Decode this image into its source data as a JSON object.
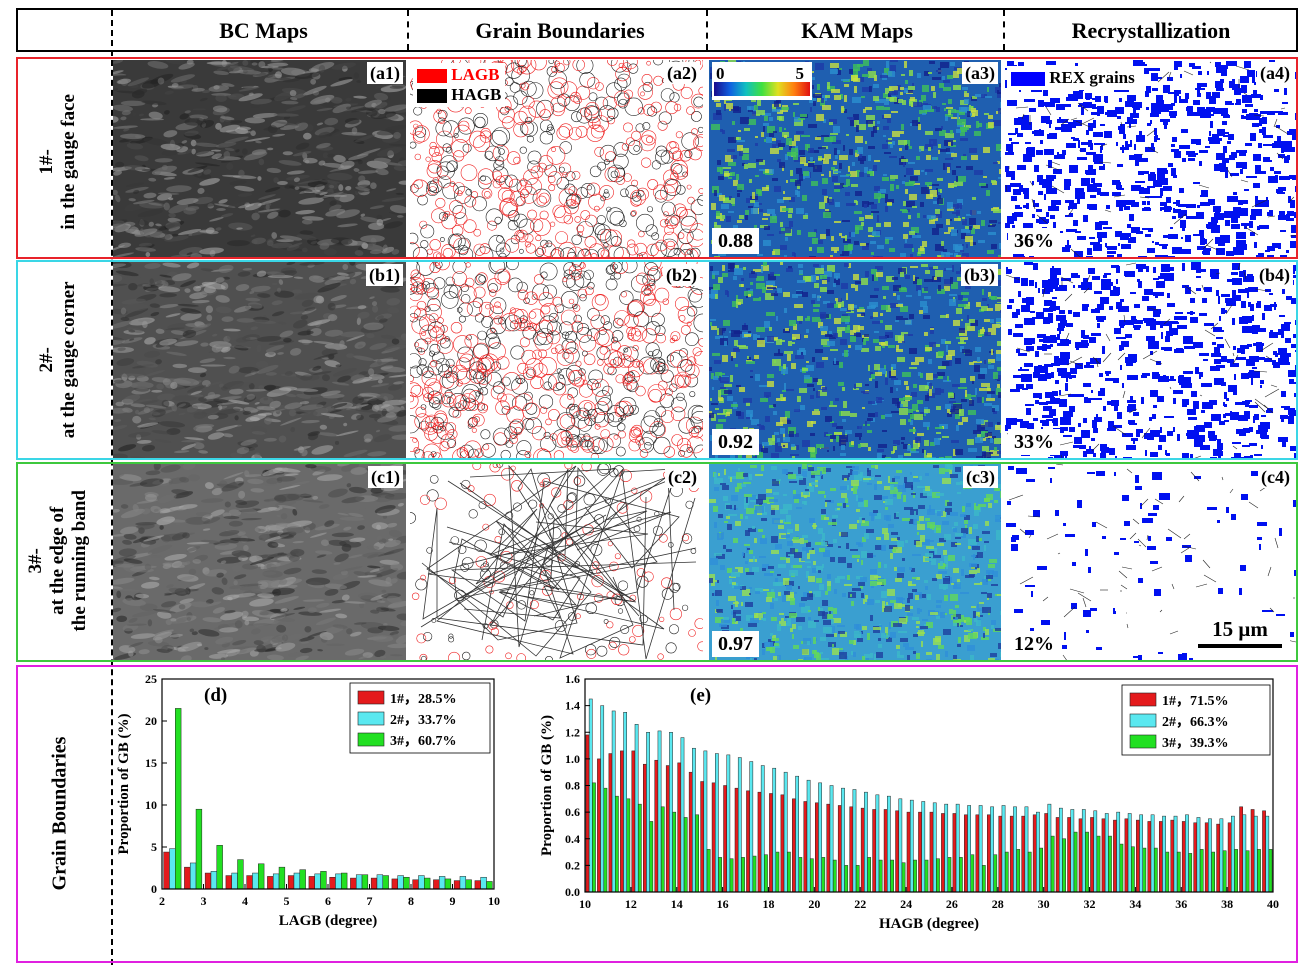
{
  "columns": [
    "BC Maps",
    "Grain Boundaries",
    "KAM Maps",
    "Recrystallization"
  ],
  "rows": [
    {
      "id": "1#-",
      "desc": "in the gauge face",
      "frame_color": "#e8232a",
      "tags": [
        "(a1)",
        "(a2)",
        "(a3)",
        "(a4)"
      ],
      "kam_mean": "0.88",
      "rex_fraction": "36%"
    },
    {
      "id": "2#-",
      "desc": "at the gauge corner",
      "frame_color": "#3ad6e6",
      "tags": [
        "(b1)",
        "(b2)",
        "(b3)",
        "(b4)"
      ],
      "kam_mean": "0.92",
      "rex_fraction": "33%"
    },
    {
      "id": "3#-",
      "desc_line1": "at the edge of",
      "desc_line2": "the running band",
      "frame_color": "#3ec83e",
      "tags": [
        "(c1)",
        "(c2)",
        "(c3)",
        "(c4)"
      ],
      "kam_mean": "0.97",
      "rex_fraction": "12%"
    }
  ],
  "gb_legend": {
    "lagb": "LAGB",
    "hagb": "HAGB",
    "lagb_color": "#ff0000",
    "hagb_color": "#000000"
  },
  "kam_scale": {
    "min": "0",
    "max": "5"
  },
  "rex_legend": {
    "label": "REX grains",
    "color": "#0000ff"
  },
  "scale_bar": "15 μm",
  "bottom_label": "Grain Boundaries",
  "bottom_frame_color": "#e020e0",
  "colors": {
    "s1": "#e41a1c",
    "s2": "#5ae8f0",
    "s3": "#22e022"
  },
  "chart_data": [
    {
      "type": "bar",
      "panel": "(d)",
      "xlabel": "LAGB (degree)",
      "ylabel": "Proportion of GB (%)",
      "xlim": [
        2,
        10
      ],
      "ylim": [
        0,
        25
      ],
      "xticks": [
        "2",
        "3",
        "4",
        "5",
        "6",
        "7",
        "8",
        "9",
        "10"
      ],
      "yticks": [
        "0",
        "5",
        "10",
        "15",
        "20",
        "25"
      ],
      "x": [
        2.25,
        2.75,
        3.25,
        3.75,
        4.25,
        4.75,
        5.25,
        5.75,
        6.25,
        6.75,
        7.25,
        7.75,
        8.25,
        8.75,
        9.25,
        9.75
      ],
      "series": [
        {
          "name": "1#，28.5%",
          "values": [
            4.4,
            2.6,
            1.9,
            1.6,
            1.6,
            1.5,
            1.6,
            1.5,
            1.4,
            1.3,
            1.3,
            1.2,
            1.1,
            1.1,
            1.0,
            1.0
          ]
        },
        {
          "name": "2#，33.7%",
          "values": [
            4.8,
            3.1,
            2.1,
            1.9,
            1.9,
            1.8,
            1.9,
            1.8,
            1.8,
            1.7,
            1.7,
            1.6,
            1.6,
            1.5,
            1.5,
            1.4
          ]
        },
        {
          "name": "3#，60.7%",
          "values": [
            21.5,
            9.5,
            5.2,
            3.5,
            3.0,
            2.6,
            2.3,
            2.1,
            1.9,
            1.7,
            1.6,
            1.4,
            1.3,
            1.2,
            1.1,
            0.9
          ]
        }
      ]
    },
    {
      "type": "bar",
      "panel": "(e)",
      "xlabel": "HAGB (degree)",
      "ylabel": "Proportion of GB (%)",
      "xlim": [
        10,
        40
      ],
      "ylim": [
        0,
        1.6
      ],
      "xticks": [
        "10",
        "12",
        "14",
        "16",
        "18",
        "20",
        "22",
        "24",
        "26",
        "28",
        "30",
        "32",
        "34",
        "36",
        "38",
        "40"
      ],
      "yticks": [
        "0.0",
        "0.2",
        "0.4",
        "0.6",
        "0.8",
        "1.0",
        "1.2",
        "1.4",
        "1.6"
      ],
      "x": [
        10.25,
        10.75,
        11.25,
        11.75,
        12.25,
        12.75,
        13.25,
        13.75,
        14.25,
        14.75,
        15.25,
        15.75,
        16.25,
        16.75,
        17.25,
        17.75,
        18.25,
        18.75,
        19.25,
        19.75,
        20.25,
        20.75,
        21.25,
        21.75,
        22.25,
        22.75,
        23.25,
        23.75,
        24.25,
        24.75,
        25.25,
        25.75,
        26.25,
        26.75,
        27.25,
        27.75,
        28.25,
        28.75,
        29.25,
        29.75,
        30.25,
        30.75,
        31.25,
        31.75,
        32.25,
        32.75,
        33.25,
        33.75,
        34.25,
        34.75,
        35.25,
        35.75,
        36.25,
        36.75,
        37.25,
        37.75,
        38.25,
        38.75,
        39.25,
        39.75
      ],
      "series": [
        {
          "name": "1#，71.5%",
          "values": [
            1.18,
            1.0,
            1.04,
            1.06,
            1.06,
            0.96,
            0.99,
            0.95,
            0.97,
            0.9,
            0.83,
            0.82,
            0.8,
            0.78,
            0.76,
            0.75,
            0.74,
            0.73,
            0.7,
            0.68,
            0.67,
            0.66,
            0.65,
            0.64,
            0.63,
            0.62,
            0.62,
            0.61,
            0.6,
            0.6,
            0.6,
            0.59,
            0.59,
            0.58,
            0.58,
            0.58,
            0.57,
            0.57,
            0.57,
            0.58,
            0.59,
            0.56,
            0.56,
            0.55,
            0.56,
            0.55,
            0.54,
            0.55,
            0.54,
            0.53,
            0.53,
            0.54,
            0.53,
            0.52,
            0.52,
            0.51,
            0.52,
            0.64,
            0.62,
            0.61
          ]
        },
        {
          "name": "2#，66.3%",
          "values": [
            1.45,
            1.4,
            1.36,
            1.35,
            1.26,
            1.2,
            1.21,
            1.2,
            1.16,
            1.08,
            1.06,
            1.04,
            1.03,
            1.01,
            0.98,
            0.95,
            0.93,
            0.9,
            0.87,
            0.84,
            0.82,
            0.8,
            0.78,
            0.77,
            0.75,
            0.73,
            0.72,
            0.7,
            0.69,
            0.68,
            0.67,
            0.66,
            0.66,
            0.65,
            0.65,
            0.64,
            0.65,
            0.64,
            0.64,
            0.6,
            0.66,
            0.63,
            0.62,
            0.62,
            0.61,
            0.59,
            0.6,
            0.59,
            0.58,
            0.58,
            0.57,
            0.57,
            0.58,
            0.56,
            0.55,
            0.55,
            0.57,
            0.58,
            0.57,
            0.57
          ]
        },
        {
          "name": "3#，39.3%",
          "values": [
            0.82,
            0.78,
            0.72,
            0.7,
            0.66,
            0.53,
            0.64,
            0.6,
            0.56,
            0.58,
            0.32,
            0.26,
            0.25,
            0.26,
            0.27,
            0.28,
            0.3,
            0.3,
            0.26,
            0.25,
            0.26,
            0.24,
            0.2,
            0.2,
            0.26,
            0.24,
            0.24,
            0.22,
            0.24,
            0.24,
            0.25,
            0.26,
            0.26,
            0.28,
            0.2,
            0.28,
            0.3,
            0.32,
            0.3,
            0.33,
            0.42,
            0.4,
            0.45,
            0.45,
            0.42,
            0.42,
            0.36,
            0.34,
            0.33,
            0.33,
            0.3,
            0.3,
            0.29,
            0.32,
            0.3,
            0.31,
            0.32,
            0.31,
            0.32,
            0.32
          ]
        }
      ]
    }
  ]
}
